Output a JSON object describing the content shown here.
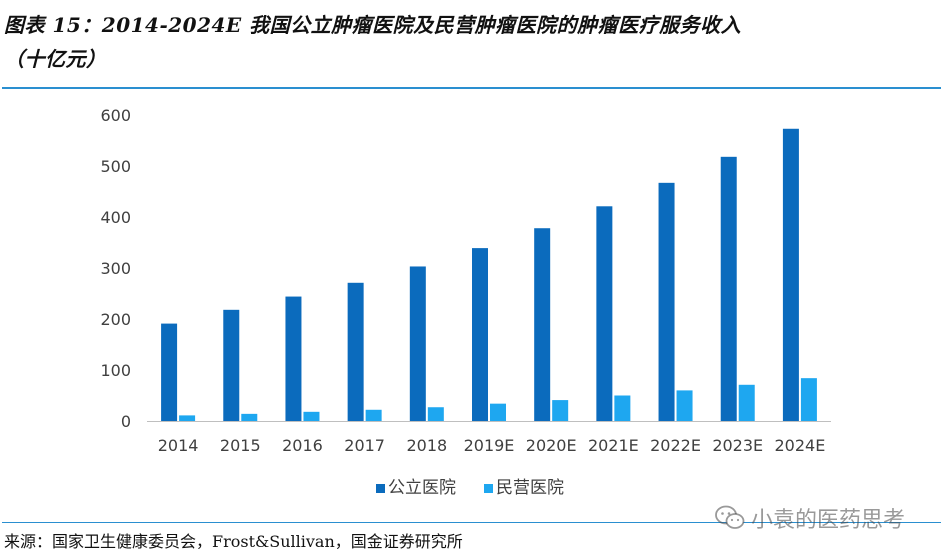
{
  "title": {
    "line1": "图表 15：2014-2024E 我国公立肿瘤医院及民营肿瘤医院的肿瘤医疗服务收入",
    "line2": "（十亿元）"
  },
  "source": "来源：国家卫生健康委员会，Frost&Sullivan，国金证券研究所",
  "watermark": {
    "text": "小袁的医药思考",
    "icon": "wechat-icon"
  },
  "chart_data": {
    "type": "bar",
    "title": "图表 15：2014-2024E 我国公立肿瘤医院及民营肿瘤医院的肿瘤医疗服务收入（十亿元）",
    "categories": [
      "2014",
      "2015",
      "2016",
      "2017",
      "2018",
      "2019E",
      "2020E",
      "2021E",
      "2022E",
      "2023E",
      "2024E"
    ],
    "series": [
      {
        "name": "公立医院",
        "color": "#0b6bbd",
        "values": [
          191,
          218,
          244,
          271,
          303,
          339,
          378,
          421,
          467,
          518,
          573
        ]
      },
      {
        "name": "民营医院",
        "color": "#1ea7f0",
        "values": [
          11,
          14,
          18,
          22,
          27,
          34,
          41,
          50,
          60,
          71,
          84
        ]
      }
    ],
    "ylim": [
      0,
      600
    ],
    "yticks": [
      0,
      100,
      200,
      300,
      400,
      500,
      600
    ],
    "grid": false,
    "legend": "bottom-center"
  }
}
